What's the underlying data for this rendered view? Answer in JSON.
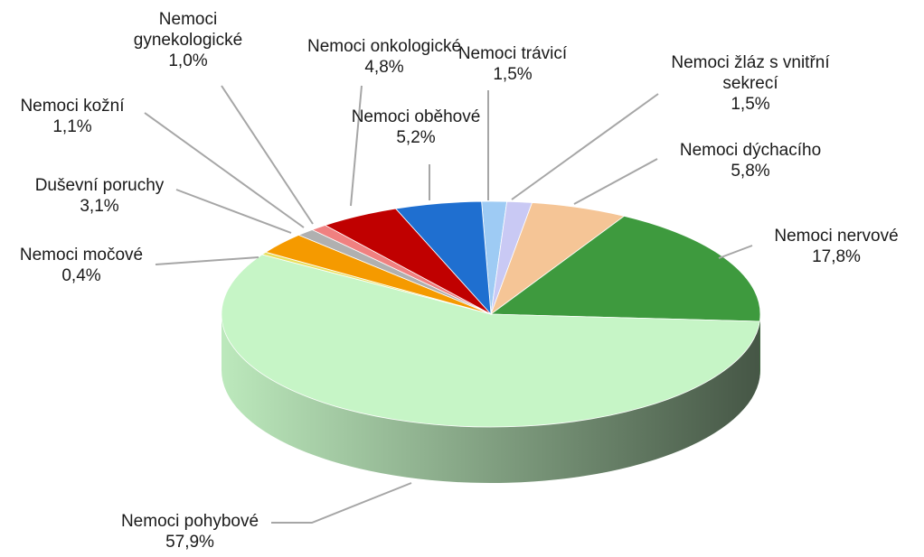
{
  "chart_data": {
    "type": "pie",
    "categories": [
      "Nemoci trávicí",
      "Nemoci žláz s vnitřní sekrecí",
      "Nemoci dýchacího",
      "Nemoci nervové",
      "Nemoci pohybové",
      "Nemoci močové",
      "Duševní poruchy",
      "Nemoci kožní",
      "Nemoci gynekologické",
      "Nemoci onkologické",
      "Nemoci oběhové"
    ],
    "values": [
      1.5,
      1.5,
      5.8,
      17.8,
      57.9,
      0.4,
      3.1,
      1.1,
      1.0,
      4.8,
      5.2
    ],
    "value_labels": [
      "1,5%",
      "1,5%",
      "5,8%",
      "17,8%",
      "57,9%",
      "0,4%",
      "3,1%",
      "1,1%",
      "1,0%",
      "4,8%",
      "5,2%"
    ],
    "colors": [
      "#9ecbf4",
      "#c9c9f4",
      "#f5c596",
      "#3e9a3e",
      "#c6f5c6",
      "#e8e060",
      "#f59a00",
      "#b0b0b0",
      "#f08080",
      "#c00000",
      "#1f6fd0"
    ]
  }
}
